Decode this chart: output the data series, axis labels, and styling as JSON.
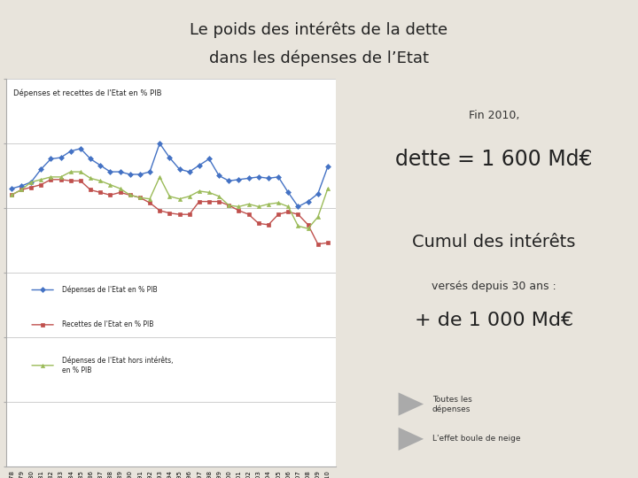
{
  "title_line1": "Le poids des intérêts de la dette",
  "title_line2": "dans les dépenses de l’Etat",
  "bg_color": "#e8e4dc",
  "chart_title": "Dépenses et recettes de l'Etat en % PIB",
  "years": [
    1978,
    1979,
    1980,
    1981,
    1982,
    1983,
    1984,
    1985,
    1986,
    1987,
    1988,
    1989,
    1990,
    1991,
    1992,
    1993,
    1994,
    1995,
    1996,
    1997,
    1998,
    1999,
    2000,
    2001,
    2002,
    2003,
    2004,
    2005,
    2006,
    2007,
    2008,
    2009,
    2010
  ],
  "depenses": [
    21.5,
    21.7,
    22.0,
    23.0,
    23.8,
    23.9,
    24.4,
    24.6,
    23.8,
    23.3,
    22.8,
    22.8,
    22.6,
    22.6,
    22.8,
    25.0,
    23.9,
    23.0,
    22.8,
    23.3,
    23.8,
    22.5,
    22.1,
    22.2,
    22.3,
    22.4,
    22.3,
    22.4,
    21.2,
    20.1,
    20.5,
    21.1,
    23.2
  ],
  "recettes": [
    21.0,
    21.4,
    21.6,
    21.8,
    22.2,
    22.2,
    22.1,
    22.1,
    21.4,
    21.2,
    21.0,
    21.2,
    21.0,
    20.8,
    20.4,
    19.8,
    19.6,
    19.5,
    19.5,
    20.5,
    20.5,
    20.5,
    20.2,
    19.8,
    19.5,
    18.8,
    18.7,
    19.5,
    19.7,
    19.5,
    18.7,
    17.2,
    17.3
  ],
  "depenses_hors": [
    21.0,
    21.4,
    22.0,
    22.2,
    22.4,
    22.4,
    22.8,
    22.8,
    22.3,
    22.1,
    21.8,
    21.5,
    21.0,
    20.8,
    20.7,
    22.4,
    20.9,
    20.7,
    20.9,
    21.3,
    21.2,
    20.9,
    20.2,
    20.1,
    20.3,
    20.1,
    20.3,
    20.4,
    20.1,
    18.6,
    18.4,
    19.3,
    21.5
  ],
  "ylim_min": 0.0,
  "ylim_max": 30.0,
  "yticks": [
    0.0,
    5.0,
    10.0,
    15.0,
    20.0,
    25.0,
    30.0
  ],
  "color_depenses": "#4472c4",
  "color_recettes": "#c0504d",
  "color_hors": "#9bbb59",
  "right_panel_text1": "Fin 2010,",
  "right_panel_text2": "dette = 1 600 Md€",
  "right_panel_text3": "Cumul des intérêts",
  "right_panel_text4": "versés depuis 30 ans :",
  "right_panel_text5": "+ de 1 000 Md€",
  "legend1": "Dépenses de l'Etat en % PIB",
  "legend2": "Recettes de l'Etat en % PIB",
  "legend3": "Dépenses de l'Etat hors intérêts,\nen % PIB",
  "btn1": "Toutes les\ndépenses",
  "btn2": "L'effet boule de neige"
}
